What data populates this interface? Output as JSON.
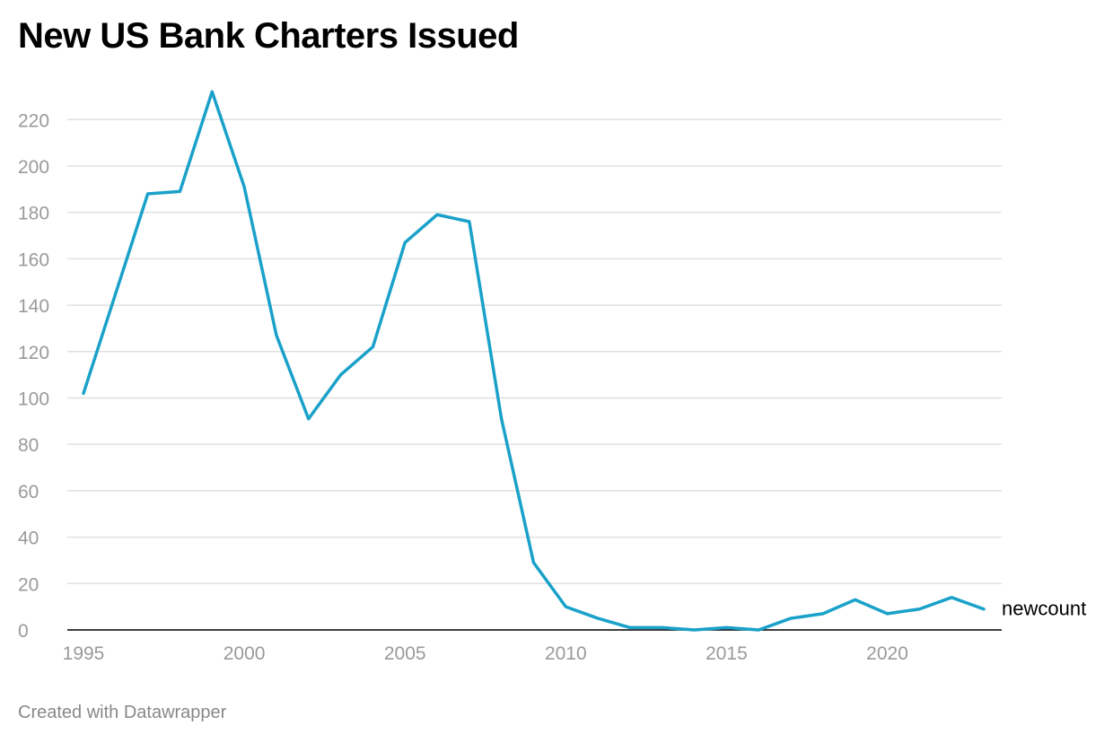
{
  "title": "New US Bank Charters Issued",
  "credit": "Created with Datawrapper",
  "colors": {
    "line": "#1aa1c9",
    "grid": "#e0e0e0",
    "baseline": "#000000",
    "tick_text": "#9a9a9a"
  },
  "chart_data": {
    "type": "line",
    "title": "New US Bank Charters Issued",
    "xlabel": "",
    "ylabel": "",
    "xlim": [
      1995,
      2023
    ],
    "ylim": [
      0,
      230
    ],
    "grid": true,
    "x_ticks": [
      1995,
      2000,
      2005,
      2010,
      2015,
      2020
    ],
    "y_ticks": [
      0,
      20,
      40,
      60,
      80,
      100,
      120,
      140,
      160,
      180,
      200,
      220
    ],
    "x": [
      1995,
      1996,
      1997,
      1998,
      1999,
      2000,
      2001,
      2002,
      2003,
      2004,
      2005,
      2006,
      2007,
      2008,
      2009,
      2010,
      2011,
      2012,
      2013,
      2014,
      2015,
      2016,
      2017,
      2018,
      2019,
      2020,
      2021,
      2022,
      2023
    ],
    "series": [
      {
        "name": "newcount",
        "values": [
          102,
          145,
          188,
          189,
          232,
          191,
          127,
          91,
          110,
          122,
          167,
          179,
          176,
          91,
          29,
          10,
          5,
          1,
          1,
          0,
          1,
          0,
          5,
          7,
          13,
          7,
          9,
          14,
          9
        ]
      }
    ]
  }
}
